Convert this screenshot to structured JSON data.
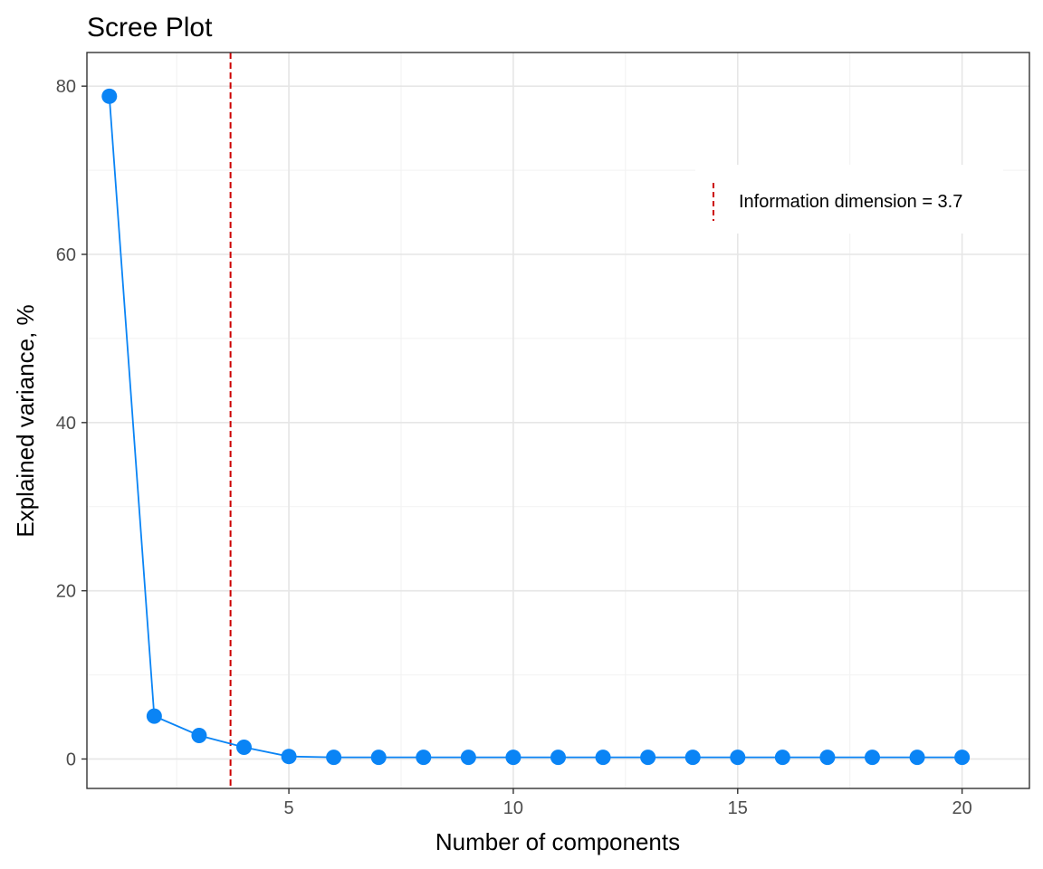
{
  "chart_data": {
    "type": "line",
    "title": "Scree Plot",
    "xlabel": "Number of components",
    "ylabel": "Explained variance, %",
    "xlim": [
      0.5,
      21.5
    ],
    "ylim": [
      -3.5,
      84
    ],
    "x_ticks": [
      5,
      10,
      15,
      20
    ],
    "y_ticks": [
      0,
      20,
      40,
      60,
      80
    ],
    "grid": true,
    "series": [
      {
        "color": "#0a84f5",
        "x": [
          1,
          2,
          3,
          4,
          5,
          6,
          7,
          8,
          9,
          10,
          11,
          12,
          13,
          14,
          15,
          16,
          17,
          18,
          19,
          20
        ],
        "y": [
          78.8,
          5.1,
          2.8,
          1.4,
          0.3,
          0.2,
          0.2,
          0.2,
          0.2,
          0.2,
          0.2,
          0.2,
          0.2,
          0.2,
          0.2,
          0.2,
          0.2,
          0.2,
          0.2,
          0.2
        ]
      }
    ],
    "reference_line": {
      "orientation": "vertical",
      "x": 3.7,
      "style": "dashed",
      "color": "#cc0000",
      "label": "Information dimension = 3.7"
    },
    "legend_position": "top-right"
  }
}
